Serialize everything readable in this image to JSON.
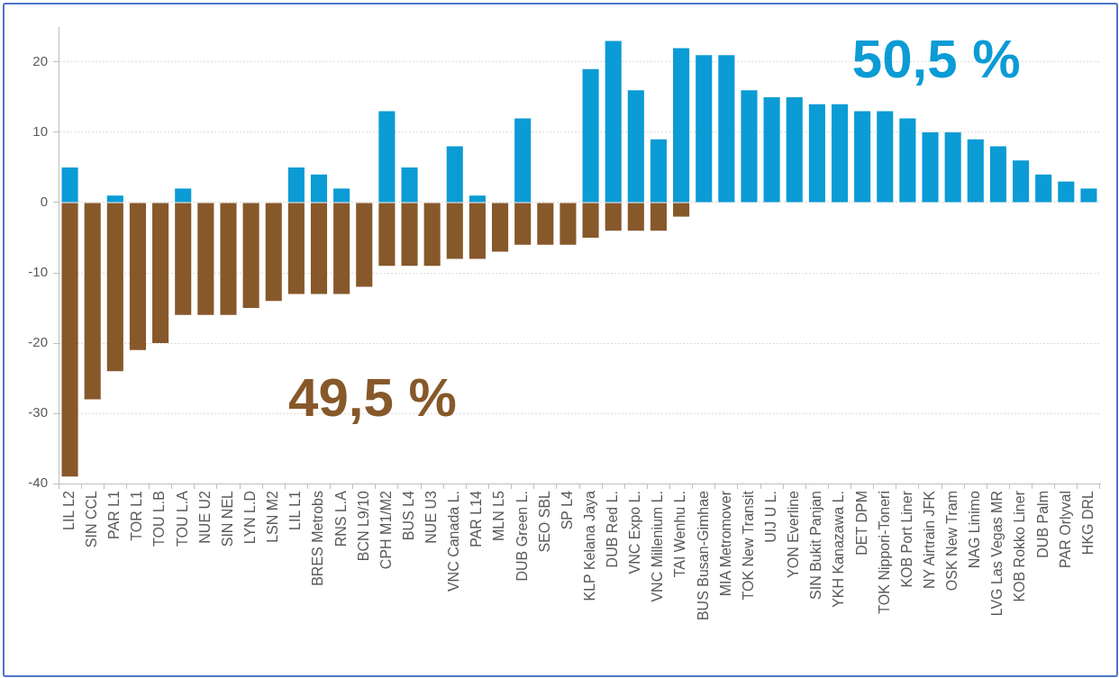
{
  "chart_data": {
    "type": "bar",
    "categories": [
      "LIL L2",
      "SIN CCL",
      "PAR L1",
      "TOR L1",
      "TOU L.B",
      "TOU L.A",
      "NUE U2",
      "SIN NEL",
      "LYN L.D",
      "LSN M2",
      "LIL L1",
      "BRES Metrobs",
      "RNS L.A",
      "BCN L9/10",
      "CPH M1/M2",
      "BUS L4",
      "NUE U3",
      "VNC Canada L.",
      "PAR L14",
      "MLN L5",
      "DUB Green L.",
      "SEO SBL",
      "SP L4",
      "KLP Kelana Jaya",
      "DUB Red L.",
      "VNC Expo L.",
      "VNC Millenium L.",
      "TAI Wenhu L.",
      "BUS Busan-Gimhae",
      "MIA Metromover",
      "TOK New Transit",
      "UIJ U L.",
      "YON Everline",
      "SIN Bukit Panjan",
      "YKH Kanazawa L.",
      "DET DPM",
      "TOK Nippori-Toneri",
      "KOB Port Liner",
      "NY Airtrain JFK",
      "OSK New Tram",
      "NAG Linimo",
      "LVG Las Vegas MR",
      "KOB Rokko Liner",
      "DUB Palm",
      "PAR Orlyval",
      "HKG DRL"
    ],
    "series": [
      {
        "color": "#0b9bd5",
        "values": [
          5,
          0,
          1,
          0,
          0,
          2,
          0,
          0,
          0,
          0,
          5,
          4,
          2,
          0,
          13,
          5,
          0,
          8,
          1,
          0,
          12,
          0,
          0,
          19,
          23,
          16,
          9,
          22,
          21,
          21,
          16,
          15,
          15,
          14,
          14,
          13,
          13,
          12,
          10,
          10,
          9,
          8,
          6,
          4,
          3,
          2
        ]
      },
      {
        "color": "#87582a",
        "values": [
          -39,
          -28,
          -24,
          -21,
          -20,
          -16,
          -16,
          -16,
          -15,
          -14,
          -13,
          -13,
          -13,
          -12,
          -9,
          -9,
          -9,
          -8,
          -8,
          -7,
          -6,
          -6,
          -6,
          -5,
          -4,
          -4,
          -4,
          -2,
          0,
          0,
          0,
          0,
          0,
          0,
          0,
          0,
          0,
          0,
          0,
          0,
          0,
          0,
          0,
          0,
          0,
          0
        ]
      }
    ],
    "stacked": true,
    "ylim": [
      -40,
      25
    ],
    "yticks": [
      -40,
      -30,
      -20,
      -10,
      0,
      10,
      20
    ],
    "grid": "y",
    "annotations": [
      "50,5 %",
      "49,5 %"
    ]
  }
}
